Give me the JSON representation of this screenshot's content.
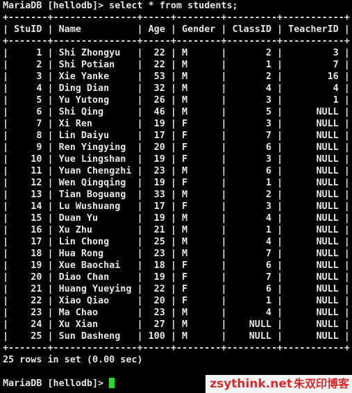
{
  "terminal": {
    "lines": [
      "MariaDB [hellodb]> select * from students;",
      "+-------+---------------+-----+--------+---------+-----------+",
      "| StuID | Name          | Age | Gender | ClassID | TeacherID |",
      "+-------+---------------+-----+--------+---------+-----------+",
      "|     1 | Shi Zhongyu   |  22 | M      |       2 |         3 |",
      "|     2 | Shi Potian    |  22 | M      |       1 |         7 |",
      "|     3 | Xie Yanke     |  53 | M      |       2 |        16 |",
      "|     4 | Ding Dian     |  32 | M      |       4 |         4 |",
      "|     5 | Yu Yutong     |  26 | M      |       3 |         1 |",
      "|     6 | Shi Qing      |  46 | M      |       5 |      NULL |",
      "|     7 | Xi Ren        |  19 | F      |       3 |      NULL |",
      "|     8 | Lin Daiyu     |  17 | F      |       7 |      NULL |",
      "|     9 | Ren Yingying  |  20 | F      |       6 |      NULL |",
      "|    10 | Yue Lingshan  |  19 | F      |       3 |      NULL |",
      "|    11 | Yuan Chengzhi |  23 | M      |       6 |      NULL |",
      "|    12 | Wen Qingqing  |  19 | F      |       1 |      NULL |",
      "|    13 | Tian Boguang  |  33 | M      |       2 |      NULL |",
      "|    14 | Lu Wushuang   |  17 | F      |       3 |      NULL |",
      "|    15 | Duan Yu       |  19 | M      |       4 |      NULL |",
      "|    16 | Xu Zhu        |  21 | M      |       1 |      NULL |",
      "|    17 | Lin Chong     |  25 | M      |       4 |      NULL |",
      "|    18 | Hua Rong      |  23 | M      |       7 |      NULL |",
      "|    19 | Xue Baochai   |  18 | F      |       6 |      NULL |",
      "|    20 | Diao Chan     |  19 | F      |       7 |      NULL |",
      "|    21 | Huang Yueying |  22 | F      |       6 |      NULL |",
      "|    22 | Xiao Qiao     |  20 | F      |       1 |      NULL |",
      "|    23 | Ma Chao       |  23 | M      |       4 |      NULL |",
      "|    24 | Xu Xian       |  27 | M      |    NULL |      NULL |",
      "|    25 | Sun Dasheng   | 100 | M      |    NULL |      NULL |",
      "+-------+---------------+-----+--------+---------+-----------+",
      "25 rows in set (0.00 sec)",
      "",
      "MariaDB [hellodb]> "
    ]
  },
  "watermark": {
    "site": "zsythink.net",
    "name": "朱双印博客"
  },
  "colors": {
    "background": "#000000",
    "text": "#e6e6e6",
    "cursor": "#19e619",
    "watermark_text": "#d92b2b",
    "watermark_bg": "#f4f4f4"
  }
}
